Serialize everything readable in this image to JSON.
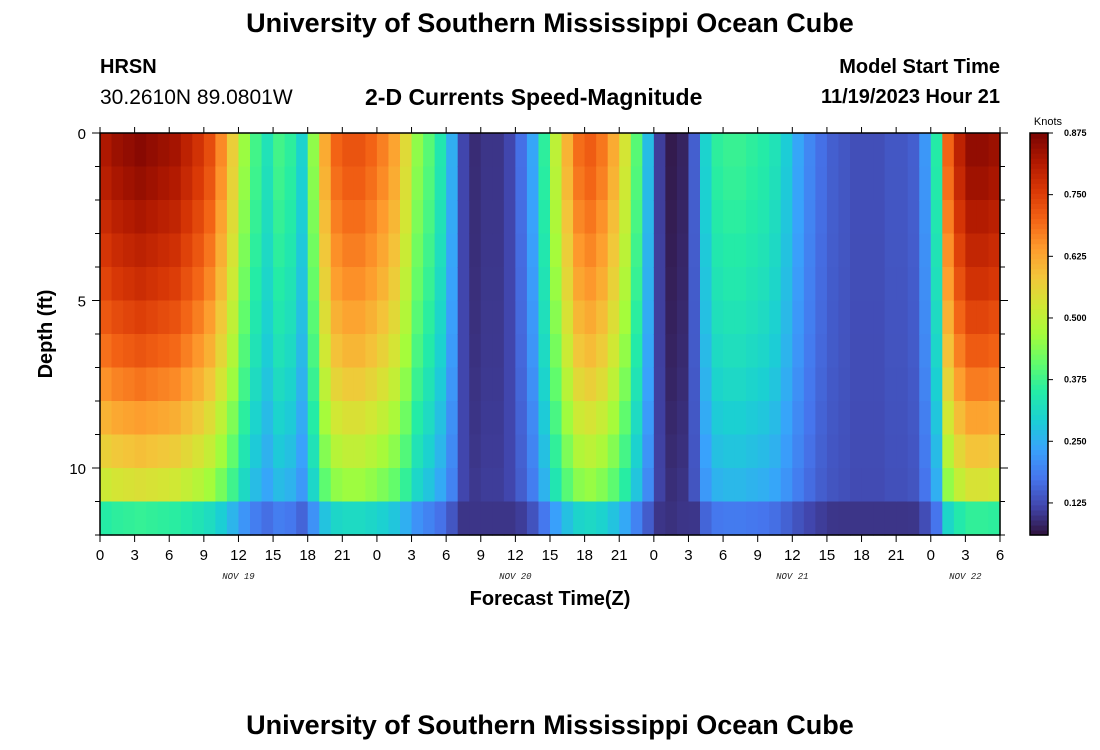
{
  "header": {
    "title_top": "University of Southern Mississippi Ocean Cube",
    "title_bottom": "University of Southern Mississippi Ocean Cube",
    "station": "HRSN",
    "coords": "30.2610N  89.0801W",
    "plot_title": "2-D Currents Speed-Magnitude",
    "model_start_label": "Model Start Time",
    "model_start_value": "11/19/2023 Hour 21"
  },
  "chart_data": {
    "type": "heatmap",
    "title": "2-D Currents Speed-Magnitude",
    "xlabel": "Forecast Time(Z)",
    "ylabel": "Depth (ft)",
    "x_hours_range": [
      0,
      78
    ],
    "y_depth_range": [
      0,
      12
    ],
    "x_tick_labels": [
      "0",
      "3",
      "6",
      "9",
      "12",
      "15",
      "18",
      "21",
      "0",
      "3",
      "6",
      "9",
      "12",
      "15",
      "18",
      "21",
      "0",
      "3",
      "6",
      "9",
      "12",
      "15",
      "18",
      "21",
      "0",
      "3",
      "6"
    ],
    "date_labels": [
      {
        "label": "NOV 19",
        "hour": 12
      },
      {
        "label": "NOV 20",
        "hour": 36
      },
      {
        "label": "NOV 21",
        "hour": 60
      },
      {
        "label": "NOV 22",
        "hour": 75
      }
    ],
    "y_ticks_major": [
      {
        "label": "0",
        "depth": 0
      },
      {
        "label": "5",
        "depth": 5
      },
      {
        "label": "10",
        "depth": 10
      }
    ],
    "colorbar": {
      "unit": "Knots",
      "min": 0.06,
      "max": 0.875,
      "ticks": [
        "0.875",
        "0.750",
        "0.625",
        "0.500",
        "0.375",
        "0.250",
        "0.125"
      ],
      "tick_values": [
        0.875,
        0.75,
        0.625,
        0.5,
        0.375,
        0.25,
        0.125
      ],
      "colormap": [
        "#30123b",
        "#4145ab",
        "#4675ed",
        "#39a2fc",
        "#1bcfd4",
        "#24eca6",
        "#61fc6c",
        "#a4fc3b",
        "#d1e834",
        "#f3c63a",
        "#fe9b2d",
        "#f36315",
        "#d93806",
        "#b11901",
        "#7a0402"
      ]
    },
    "cols_count": 78,
    "rows_count": 12,
    "surface_profile_knots": [
      0.82,
      0.84,
      0.85,
      0.86,
      0.85,
      0.84,
      0.83,
      0.8,
      0.77,
      0.73,
      0.66,
      0.57,
      0.46,
      0.38,
      0.33,
      0.38,
      0.36,
      0.3,
      0.45,
      0.62,
      0.7,
      0.72,
      0.72,
      0.7,
      0.67,
      0.63,
      0.55,
      0.45,
      0.4,
      0.34,
      0.25,
      0.12,
      0.09,
      0.1,
      0.1,
      0.12,
      0.17,
      0.24,
      0.36,
      0.5,
      0.61,
      0.69,
      0.71,
      0.68,
      0.62,
      0.53,
      0.4,
      0.27,
      0.11,
      0.07,
      0.08,
      0.15,
      0.3,
      0.36,
      0.37,
      0.37,
      0.36,
      0.35,
      0.33,
      0.29,
      0.24,
      0.2,
      0.17,
      0.15,
      0.14,
      0.13,
      0.13,
      0.13,
      0.14,
      0.14,
      0.15,
      0.22,
      0.35,
      0.7,
      0.8,
      0.85,
      0.85,
      0.84
    ],
    "depth_decay_per_ft": [
      1.0,
      0.98,
      0.95,
      0.92,
      0.89,
      0.85,
      0.81,
      0.76,
      0.7,
      0.64,
      0.57,
      0.5
    ],
    "minimum_floor_knots": 0.12,
    "bottom_slow_band_knots": 0.1
  }
}
